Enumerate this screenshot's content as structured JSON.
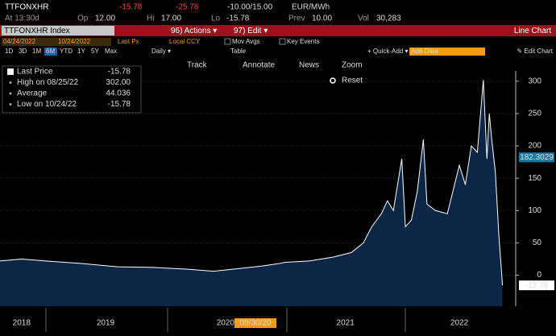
{
  "header": {
    "ticker": "TTFONXHR",
    "last": "-15.78",
    "change": "-25.78",
    "range": "-10.00/15.00",
    "unit": "EUR/MWh",
    "at": "At 13:30d",
    "op_label": "Op",
    "op": "12.00",
    "hi_label": "Hi",
    "hi": "17.00",
    "lo_label": "Lo",
    "lo": "-15.78",
    "prev_label": "Prev",
    "prev": "10.00",
    "vol_label": "Vol",
    "vol": "30,283"
  },
  "toolbar": {
    "index": "TTFONXHR Index",
    "actions": "96) Actions ▾",
    "edit": "97) Edit ▾",
    "chart_type": "Line Chart",
    "start_date": "04/24/2022",
    "end_date": "10/24/2022",
    "field": "Last Px",
    "currency": "Local CCY",
    "mov_avgs": "Mov Avgs",
    "key_events": "Key Events",
    "periods": [
      "1D",
      "3D",
      "1M",
      "6M",
      "YTD",
      "1Y",
      "5Y",
      "Max"
    ],
    "freq": "Daily ▾",
    "table": "Table",
    "quick_add": "+ Quick-Add ▾",
    "add_data": "Add Data",
    "edit_chart": "✎ Edit Chart"
  },
  "tools": {
    "track": "Track",
    "annotate": "Annotate",
    "news": "News",
    "zoom": "Zoom",
    "reset": "Reset"
  },
  "stats": [
    {
      "label": "Last Price",
      "value": "-15.78"
    },
    {
      "label": "High on 08/25/22",
      "value": "302.00"
    },
    {
      "label": "Average",
      "value": "44.036"
    },
    {
      "label": "Low on 10/24/22",
      "value": "-15.78"
    }
  ],
  "chart_data": {
    "type": "area",
    "x": [
      2018.62,
      2018.8,
      2019.0,
      2019.3,
      2019.6,
      2019.9,
      2020.2,
      2020.4,
      2020.6,
      2020.8,
      2020.95,
      2021.0,
      2021.2,
      2021.4,
      2021.55,
      2021.65,
      2021.72,
      2021.8,
      2021.85,
      2021.9,
      2021.97,
      2022.0,
      2022.05,
      2022.1,
      2022.15,
      2022.18,
      2022.25,
      2022.35,
      2022.45,
      2022.5,
      2022.55,
      2022.6,
      2022.65,
      2022.68,
      2022.7,
      2022.72,
      2022.75,
      2022.78,
      2022.81
    ],
    "series": [
      {
        "name": "Last Price",
        "color": "#ffffff",
        "fill": "#0c2746",
        "values": [
          22,
          25,
          22,
          18,
          13,
          12,
          9,
          6,
          10,
          14,
          18,
          20,
          22,
          28,
          35,
          50,
          75,
          95,
          115,
          100,
          180,
          75,
          85,
          130,
          210,
          110,
          100,
          95,
          170,
          140,
          200,
          190,
          302,
          180,
          250,
          210,
          160,
          60,
          -15.78
        ]
      }
    ],
    "xlim": [
      2018.62,
      2022.92
    ],
    "xticks": [
      {
        "value": 2018.8,
        "label": "2018"
      },
      {
        "value": 2019.5,
        "label": "2019"
      },
      {
        "value": 2020.5,
        "label": "2020"
      },
      {
        "value": 2021.5,
        "label": "2021"
      },
      {
        "value": 2022.45,
        "label": "2022"
      }
    ],
    "ylim": [
      -48,
      316
    ],
    "yticks": [
      0,
      50,
      100,
      150,
      200,
      250,
      300
    ],
    "grid": true,
    "markers": [
      {
        "value": 182.3029,
        "label": "182.3029",
        "color": "#0e7fa3"
      },
      {
        "value": -15.78,
        "label": "-15.78",
        "color": "#ffffff"
      }
    ],
    "date_marker": {
      "x": 2020.75,
      "label": "09/30/20"
    }
  }
}
